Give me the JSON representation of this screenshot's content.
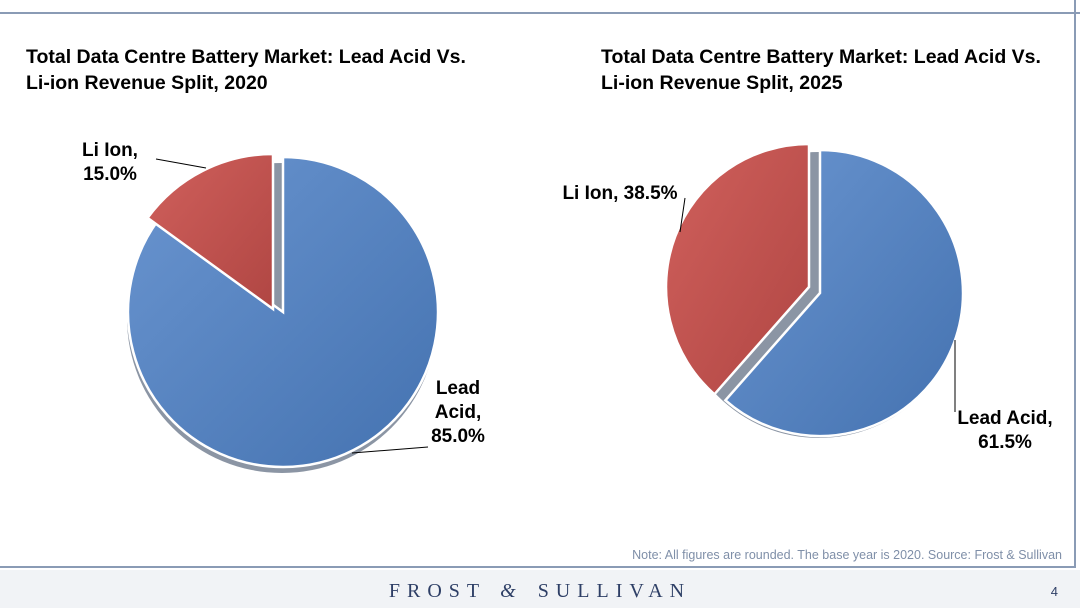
{
  "chart_data": [
    {
      "type": "pie",
      "title_line1": "Total Data Centre Battery Market: Lead Acid Vs.",
      "title_line2": "Li-ion Revenue Split, 2020",
      "slices": [
        {
          "name": "Lead Acid",
          "value": 85.0,
          "label_lines": [
            "Lead",
            "Acid,",
            "85.0%"
          ],
          "color": "#4f7fc0"
        },
        {
          "name": "Li Ion",
          "value": 15.0,
          "label_lines": [
            "Li Ion,",
            "15.0%"
          ],
          "color": "#c0504d"
        }
      ]
    },
    {
      "type": "pie",
      "title_line1": "Total Data Centre Battery Market: Lead Acid Vs.",
      "title_line2": "Li-ion Revenue Split, 2025",
      "slices": [
        {
          "name": "Lead Acid",
          "value": 61.5,
          "label_lines": [
            "Lead Acid,",
            "61.5%"
          ],
          "color": "#4f7fc0"
        },
        {
          "name": "Li Ion",
          "value": 38.5,
          "label_lines": [
            "Li Ion, 38.5%"
          ],
          "color": "#c0504d"
        }
      ]
    }
  ],
  "note": "Note: All figures are rounded. The base year is 2020. Source: Frost & Sullivan",
  "footer": {
    "brand_left": "FROST",
    "brand_amp": "&",
    "brand_right": "SULLIVAN",
    "page_number": "4"
  }
}
